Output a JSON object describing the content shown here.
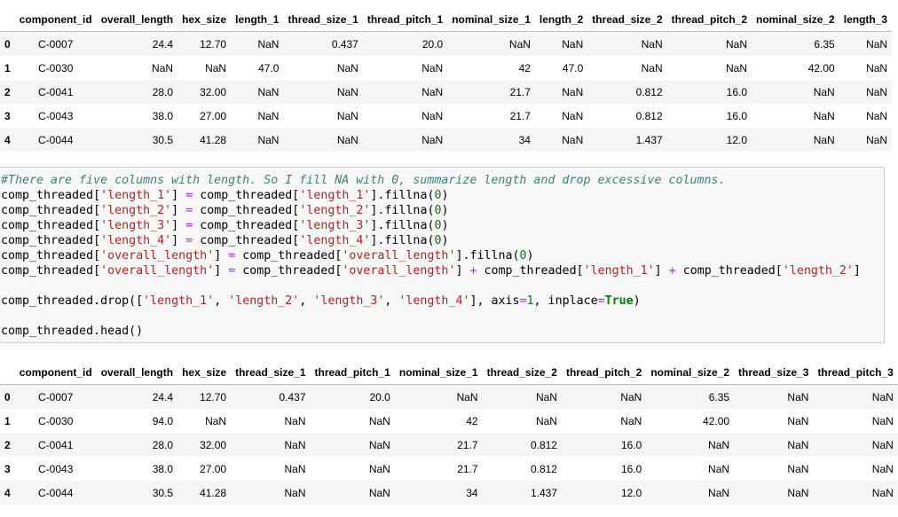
{
  "table1": {
    "columns": [
      "",
      "component_id",
      "overall_length",
      "hex_size",
      "length_1",
      "thread_size_1",
      "thread_pitch_1",
      "nominal_size_1",
      "length_2",
      "thread_size_2",
      "thread_pitch_2",
      "nominal_size_2",
      "length_3"
    ],
    "rows": [
      [
        "0",
        "C-0007",
        "24.4",
        "12.70",
        "NaN",
        "0.437",
        "20.0",
        "NaN",
        "NaN",
        "NaN",
        "NaN",
        "6.35",
        "NaN"
      ],
      [
        "1",
        "C-0030",
        "NaN",
        "NaN",
        "47.0",
        "NaN",
        "NaN",
        "42",
        "47.0",
        "NaN",
        "NaN",
        "42.00",
        "NaN"
      ],
      [
        "2",
        "C-0041",
        "28.0",
        "32.00",
        "NaN",
        "NaN",
        "NaN",
        "21.7",
        "NaN",
        "0.812",
        "16.0",
        "NaN",
        "NaN"
      ],
      [
        "3",
        "C-0043",
        "38.0",
        "27.00",
        "NaN",
        "NaN",
        "NaN",
        "21.7",
        "NaN",
        "0.812",
        "16.0",
        "NaN",
        "NaN"
      ],
      [
        "4",
        "C-0044",
        "30.5",
        "41.28",
        "NaN",
        "NaN",
        "NaN",
        "34",
        "NaN",
        "1.437",
        "12.0",
        "NaN",
        "NaN"
      ]
    ]
  },
  "code": {
    "comment": "#There are five columns with length. So I fill NA with 0, summarize length and drop excessive columns.",
    "var": "comp_threaded",
    "fillna_cols": [
      "length_1",
      "length_2",
      "length_3",
      "length_4",
      "overall_length"
    ],
    "fillna_suffix": ".fillna(",
    "zero": "0",
    "sum_line_target": "overall_length",
    "sum_line_terms": [
      "overall_length",
      "length_1",
      "length_2"
    ],
    "drop_call": "comp_threaded.drop([",
    "drop_cols": [
      "length_1",
      "length_2",
      "length_3",
      "length_4"
    ],
    "drop_axis_text": "], axis",
    "axis_val": "1",
    "inplace_text": ", inplace",
    "true_kw": "True",
    "head_call": "comp_threaded.head()"
  },
  "table2": {
    "columns": [
      "",
      "component_id",
      "overall_length",
      "hex_size",
      "thread_size_1",
      "thread_pitch_1",
      "nominal_size_1",
      "thread_size_2",
      "thread_pitch_2",
      "nominal_size_2",
      "thread_size_3",
      "thread_pitch_3"
    ],
    "rows": [
      [
        "0",
        "C-0007",
        "24.4",
        "12.70",
        "0.437",
        "20.0",
        "NaN",
        "NaN",
        "NaN",
        "6.35",
        "NaN",
        "NaN"
      ],
      [
        "1",
        "C-0030",
        "94.0",
        "NaN",
        "NaN",
        "NaN",
        "42",
        "NaN",
        "NaN",
        "42.00",
        "NaN",
        "NaN"
      ],
      [
        "2",
        "C-0041",
        "28.0",
        "32.00",
        "NaN",
        "NaN",
        "21.7",
        "0.812",
        "16.0",
        "NaN",
        "NaN",
        "NaN"
      ],
      [
        "3",
        "C-0043",
        "38.0",
        "27.00",
        "NaN",
        "NaN",
        "21.7",
        "0.812",
        "16.0",
        "NaN",
        "NaN",
        "NaN"
      ],
      [
        "4",
        "C-0044",
        "30.5",
        "41.28",
        "NaN",
        "NaN",
        "34",
        "1.437",
        "12.0",
        "NaN",
        "NaN",
        "NaN"
      ]
    ]
  }
}
